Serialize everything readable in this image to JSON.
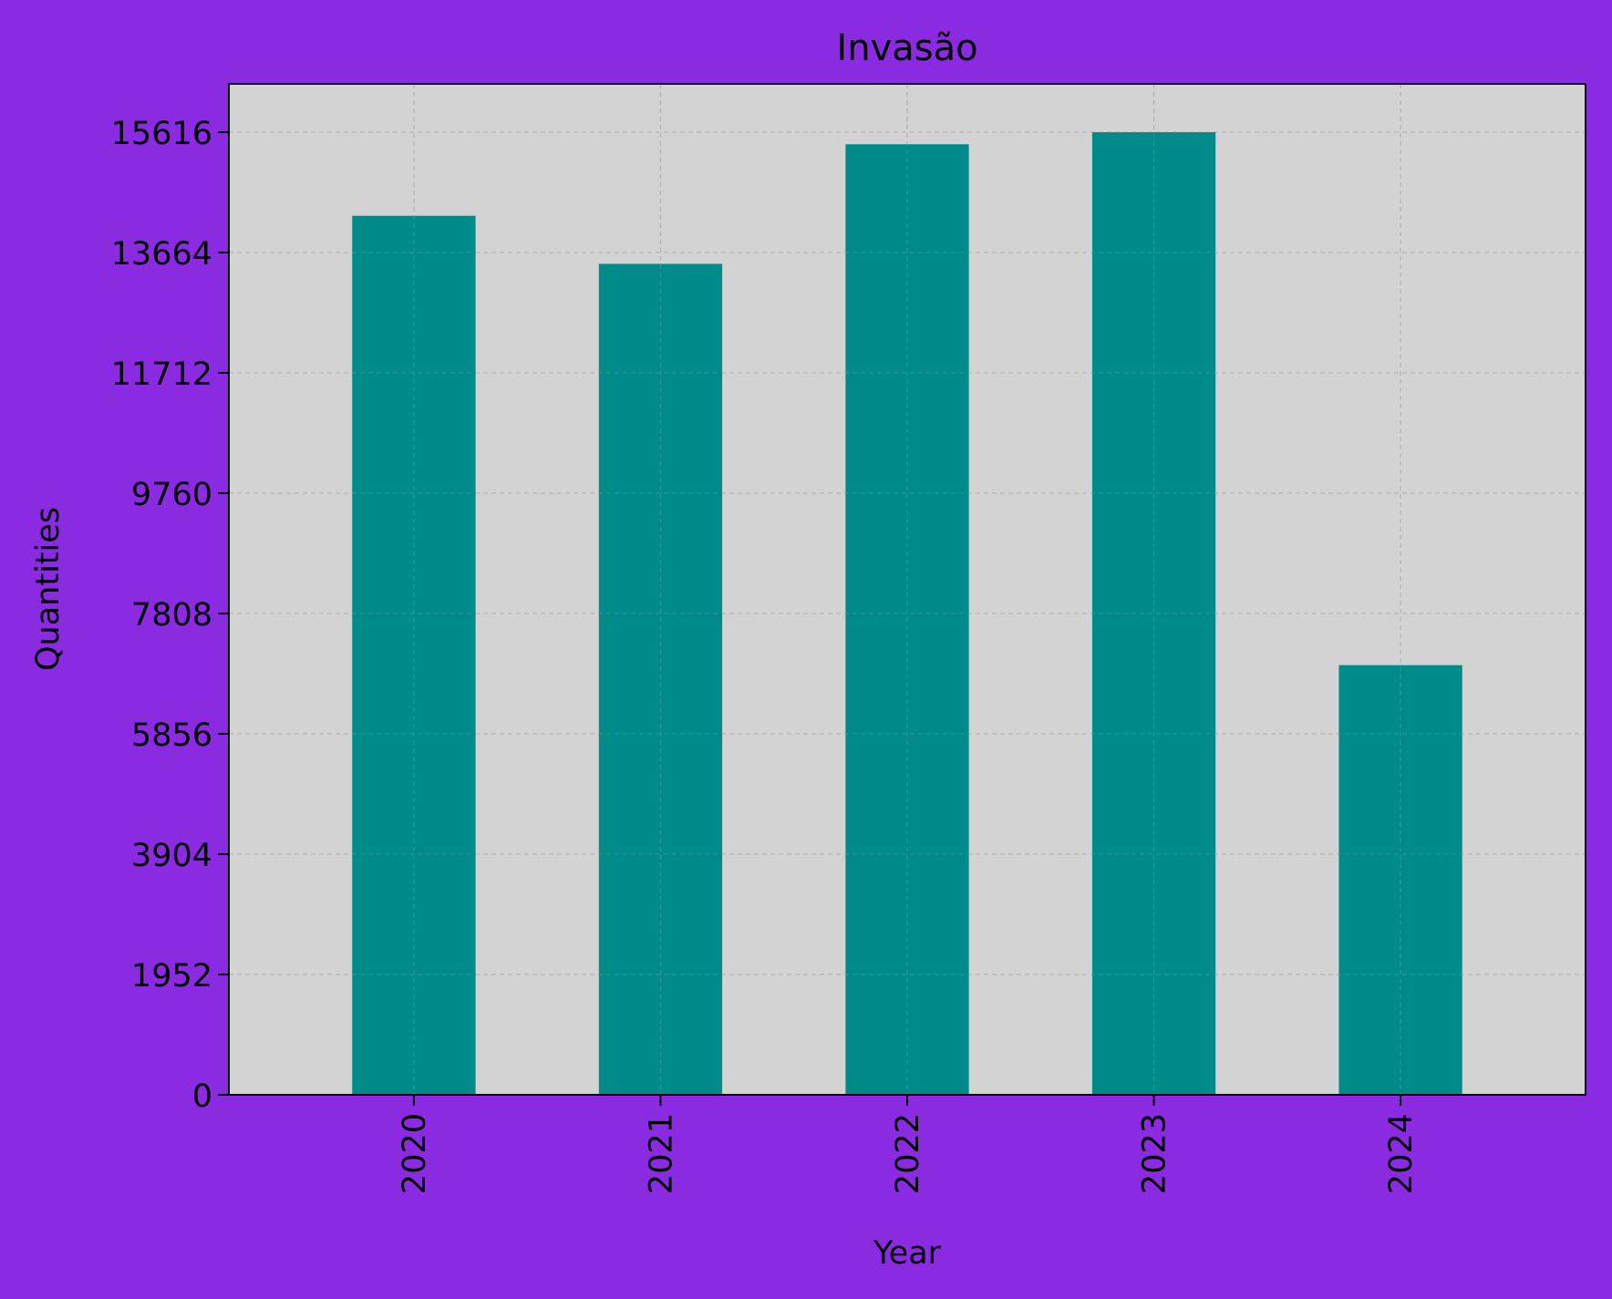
{
  "colors": {
    "figure_background": "#8a2be2",
    "plot_background": "#d3d3d3",
    "bar": "#008b8b",
    "grid": "#b0b0b0",
    "axis": "#000000"
  },
  "chart_data": {
    "type": "bar",
    "title": "Invasão",
    "xlabel": "Year",
    "ylabel": "Quantities",
    "categories": [
      "2020",
      "2021",
      "2022",
      "2023",
      "2024"
    ],
    "values": [
      14260,
      13480,
      15420,
      15616,
      6970
    ],
    "ylim": [
      0,
      16400
    ],
    "yticks": [
      0,
      1952,
      3904,
      5856,
      7808,
      9760,
      11712,
      13664,
      15616
    ],
    "ytick_labels": [
      "0",
      "1952",
      "3904",
      "5856",
      "7808",
      "9760",
      "11712",
      "13664",
      "15616"
    ],
    "xtick_rotation": "vertical",
    "grid": true,
    "grid_style": "dashed",
    "legend": "none"
  }
}
